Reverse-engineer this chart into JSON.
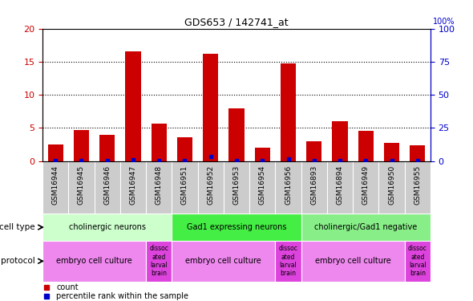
{
  "title": "GDS653 / 142741_at",
  "samples": [
    "GSM16944",
    "GSM16945",
    "GSM16946",
    "GSM16947",
    "GSM16948",
    "GSM16951",
    "GSM16952",
    "GSM16953",
    "GSM16954",
    "GSM16956",
    "GSM16893",
    "GSM16894",
    "GSM16949",
    "GSM16950",
    "GSM16955"
  ],
  "counts": [
    2.5,
    4.7,
    4.0,
    16.6,
    5.7,
    3.6,
    16.2,
    7.9,
    2.0,
    14.8,
    3.0,
    6.0,
    4.6,
    2.7,
    2.4
  ],
  "percentile_ranks": [
    0.4,
    0.4,
    0.4,
    1.2,
    0.4,
    0.4,
    3.6,
    0.4,
    0.4,
    1.6,
    0.4,
    0.4,
    0.4,
    0.4,
    0.4
  ],
  "ylim_left": [
    0,
    20
  ],
  "ylim_right": [
    0,
    100
  ],
  "yticks_left": [
    0,
    5,
    10,
    15,
    20
  ],
  "yticks_right": [
    0,
    25,
    50,
    75,
    100
  ],
  "bar_color": "#cc0000",
  "percentile_color": "#0000cc",
  "cell_type_groups": [
    {
      "label": "cholinergic neurons",
      "start": 0,
      "end": 5
    },
    {
      "label": "Gad1 expressing neurons",
      "start": 5,
      "end": 10
    },
    {
      "label": "cholinergic/Gad1 negative",
      "start": 10,
      "end": 15
    }
  ],
  "cell_type_colors": [
    "#ccffcc",
    "#44ee44",
    "#88ee88"
  ],
  "protocol_groups": [
    {
      "label": "embryo cell culture",
      "start": 0,
      "end": 4
    },
    {
      "label": "dissoc\nated\nlarval\nbrain",
      "start": 4,
      "end": 5
    },
    {
      "label": "embryo cell culture",
      "start": 5,
      "end": 9
    },
    {
      "label": "dissoc\nated\nlarval\nbrain",
      "start": 9,
      "end": 10
    },
    {
      "label": "embryo cell culture",
      "start": 10,
      "end": 14
    },
    {
      "label": "dissoc\nated\nlarval\nbrain",
      "start": 14,
      "end": 15
    }
  ],
  "proto_main_color": "#ee88ee",
  "proto_alt_color": "#dd44dd",
  "legend_count_label": "count",
  "legend_pct_label": "percentile rank within the sample",
  "tick_label_color_left": "#cc0000",
  "tick_label_color_right": "#0000cc",
  "cell_type_row_label": "cell type",
  "protocol_row_label": "protocol",
  "xlabel_bg_color": "#cccccc"
}
